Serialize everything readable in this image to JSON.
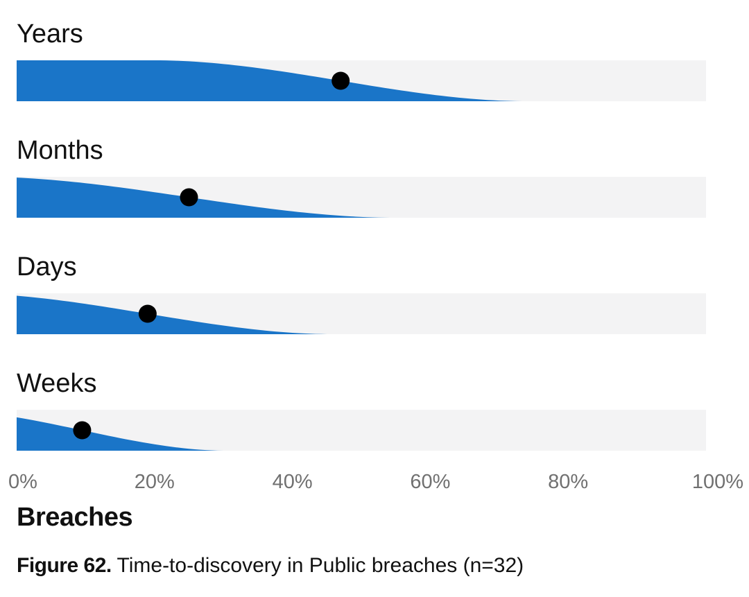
{
  "chart_data": {
    "type": "area",
    "title": "",
    "xlabel": "Breaches",
    "ylabel": "",
    "xlim": [
      0,
      100
    ],
    "x_ticks": [
      "0%",
      "20%",
      "40%",
      "60%",
      "80%",
      "100%"
    ],
    "x_tick_values": [
      0,
      20,
      40,
      60,
      80,
      100
    ],
    "grid": false,
    "legend": "none",
    "fill_color": "#1a75c8",
    "track_color": "#f3f3f4",
    "point_color": "#000000",
    "categories": [
      "Years",
      "Months",
      "Days",
      "Weeks"
    ],
    "series": [
      {
        "category": "Years",
        "point": 47,
        "spread": 27
      },
      {
        "category": "Months",
        "point": 25,
        "spread": 30
      },
      {
        "category": "Days",
        "point": 19,
        "spread": 27
      },
      {
        "category": "Weeks",
        "point": 9.5,
        "spread": 21
      }
    ]
  },
  "caption": {
    "figure_number": "Figure 62.",
    "text": " Time-to-discovery in Public breaches (n=32)"
  }
}
